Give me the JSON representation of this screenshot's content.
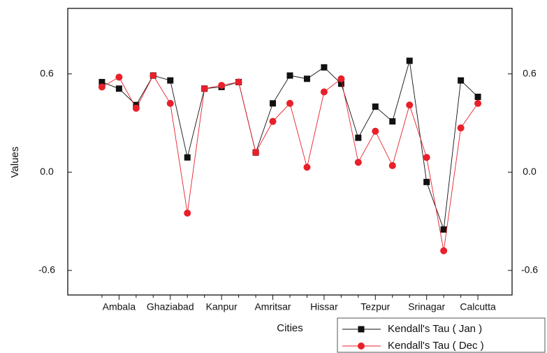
{
  "chart_data": {
    "type": "line",
    "x_label": "Cities",
    "y_label": "Values",
    "categories": [
      null,
      "Ambala",
      null,
      null,
      "Ghaziabad",
      null,
      null,
      "Kanpur",
      null,
      null,
      "Amritsar",
      null,
      null,
      "Hissar",
      null,
      null,
      "Tezpur",
      null,
      null,
      "Srinagar",
      null,
      null,
      "Calcutta"
    ],
    "series": [
      {
        "name": "Kendall's Tau ( Jan )",
        "color": "#111111",
        "marker": "square",
        "values": [
          0.55,
          0.51,
          0.41,
          0.59,
          0.56,
          0.09,
          0.51,
          0.52,
          0.55,
          0.12,
          0.42,
          0.59,
          0.57,
          0.64,
          0.54,
          0.21,
          0.4,
          0.31,
          0.68,
          -0.06,
          -0.35,
          0.56,
          0.46
        ]
      },
      {
        "name": "Kendall's Tau ( Dec )",
        "color": "#e8202a",
        "marker": "circle",
        "values": [
          0.52,
          0.58,
          0.39,
          0.59,
          0.42,
          -0.25,
          0.51,
          0.53,
          0.55,
          0.12,
          0.31,
          0.42,
          0.03,
          0.49,
          0.57,
          0.06,
          0.25,
          0.04,
          0.41,
          0.09,
          -0.48,
          0.27,
          0.42
        ]
      }
    ],
    "ylim": [
      -0.75,
      1.0
    ],
    "yticks": [
      -0.6,
      {
        "value": 0,
        "label": "0.0"
      },
      0.6
    ],
    "right_axis_labels": true,
    "legend": "bottom-right"
  }
}
